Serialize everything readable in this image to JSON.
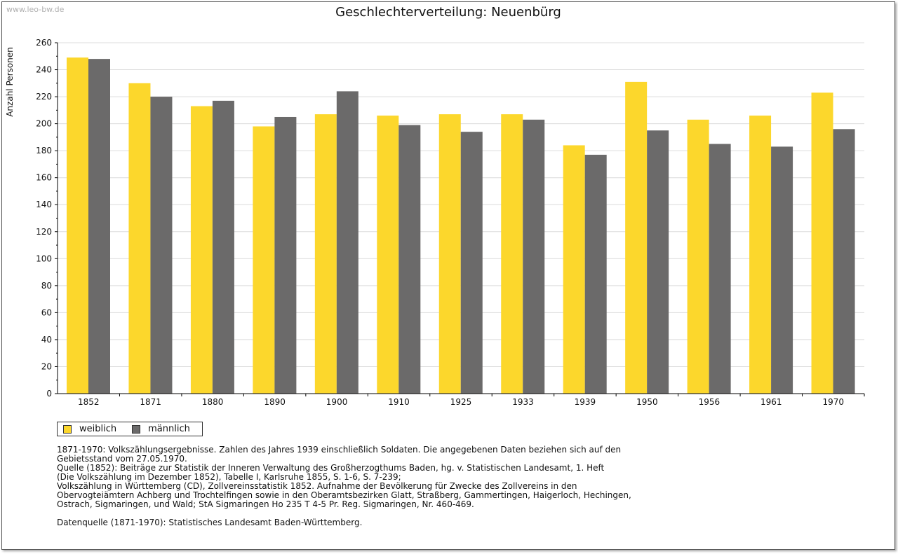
{
  "watermark": "www.leo-bw.de",
  "chart_data": {
    "type": "bar",
    "title": "Geschlechterverteilung: Neuenbürg",
    "ylabel": "Anzahl Personen",
    "xlabel": "",
    "ylim": [
      0,
      260
    ],
    "yticks": [
      0,
      20,
      40,
      60,
      80,
      100,
      120,
      140,
      160,
      180,
      200,
      220,
      240,
      260
    ],
    "grid": true,
    "legend_position": "bottom-left",
    "categories": [
      "1852",
      "1871",
      "1880",
      "1890",
      "1900",
      "1910",
      "1925",
      "1933",
      "1939",
      "1950",
      "1956",
      "1961",
      "1970"
    ],
    "series": [
      {
        "name": "weiblich",
        "color": "#FCD72C",
        "values": [
          249,
          230,
          213,
          198,
          207,
          206,
          207,
          207,
          184,
          231,
          203,
          206,
          223
        ]
      },
      {
        "name": "männlich",
        "color": "#6B6A6A",
        "values": [
          248,
          220,
          217,
          205,
          224,
          199,
          194,
          203,
          177,
          195,
          185,
          183,
          196
        ]
      }
    ]
  },
  "notes": [
    "1871-1970: Volkszählungsergebnisse. Zahlen des Jahres 1939 einschließlich Soldaten. Die angegebenen Daten beziehen sich auf den",
    "Gebietsstand vom 27.05.1970.",
    "Quelle (1852): Beiträge zur Statistik der Inneren Verwaltung des Großherzogthums Baden, hg. v. Statistischen Landesamt, 1. Heft",
    "(Die Volkszählung im Dezember 1852), Tabelle I, Karlsruhe 1855, S. 1-6, S. 7-239;",
    "Volkszählung in Württemberg (CD), Zollvereinsstatistik 1852. Aufnahme der Bevölkerung für Zwecke des Zollvereins in den",
    "Obervogteiämtern Achberg und Trochtelfingen sowie in den Oberamtsbezirken Glatt, Straßberg, Gammertingen, Haigerloch, Hechingen,",
    "Ostrach, Sigmaringen, und Wald; StA Sigmaringen Ho 235 T 4-5 Pr. Reg. Sigmaringen, Nr. 460-469."
  ],
  "data_source": "Datenquelle (1871-1970): Statistisches Landesamt Baden-Württemberg."
}
